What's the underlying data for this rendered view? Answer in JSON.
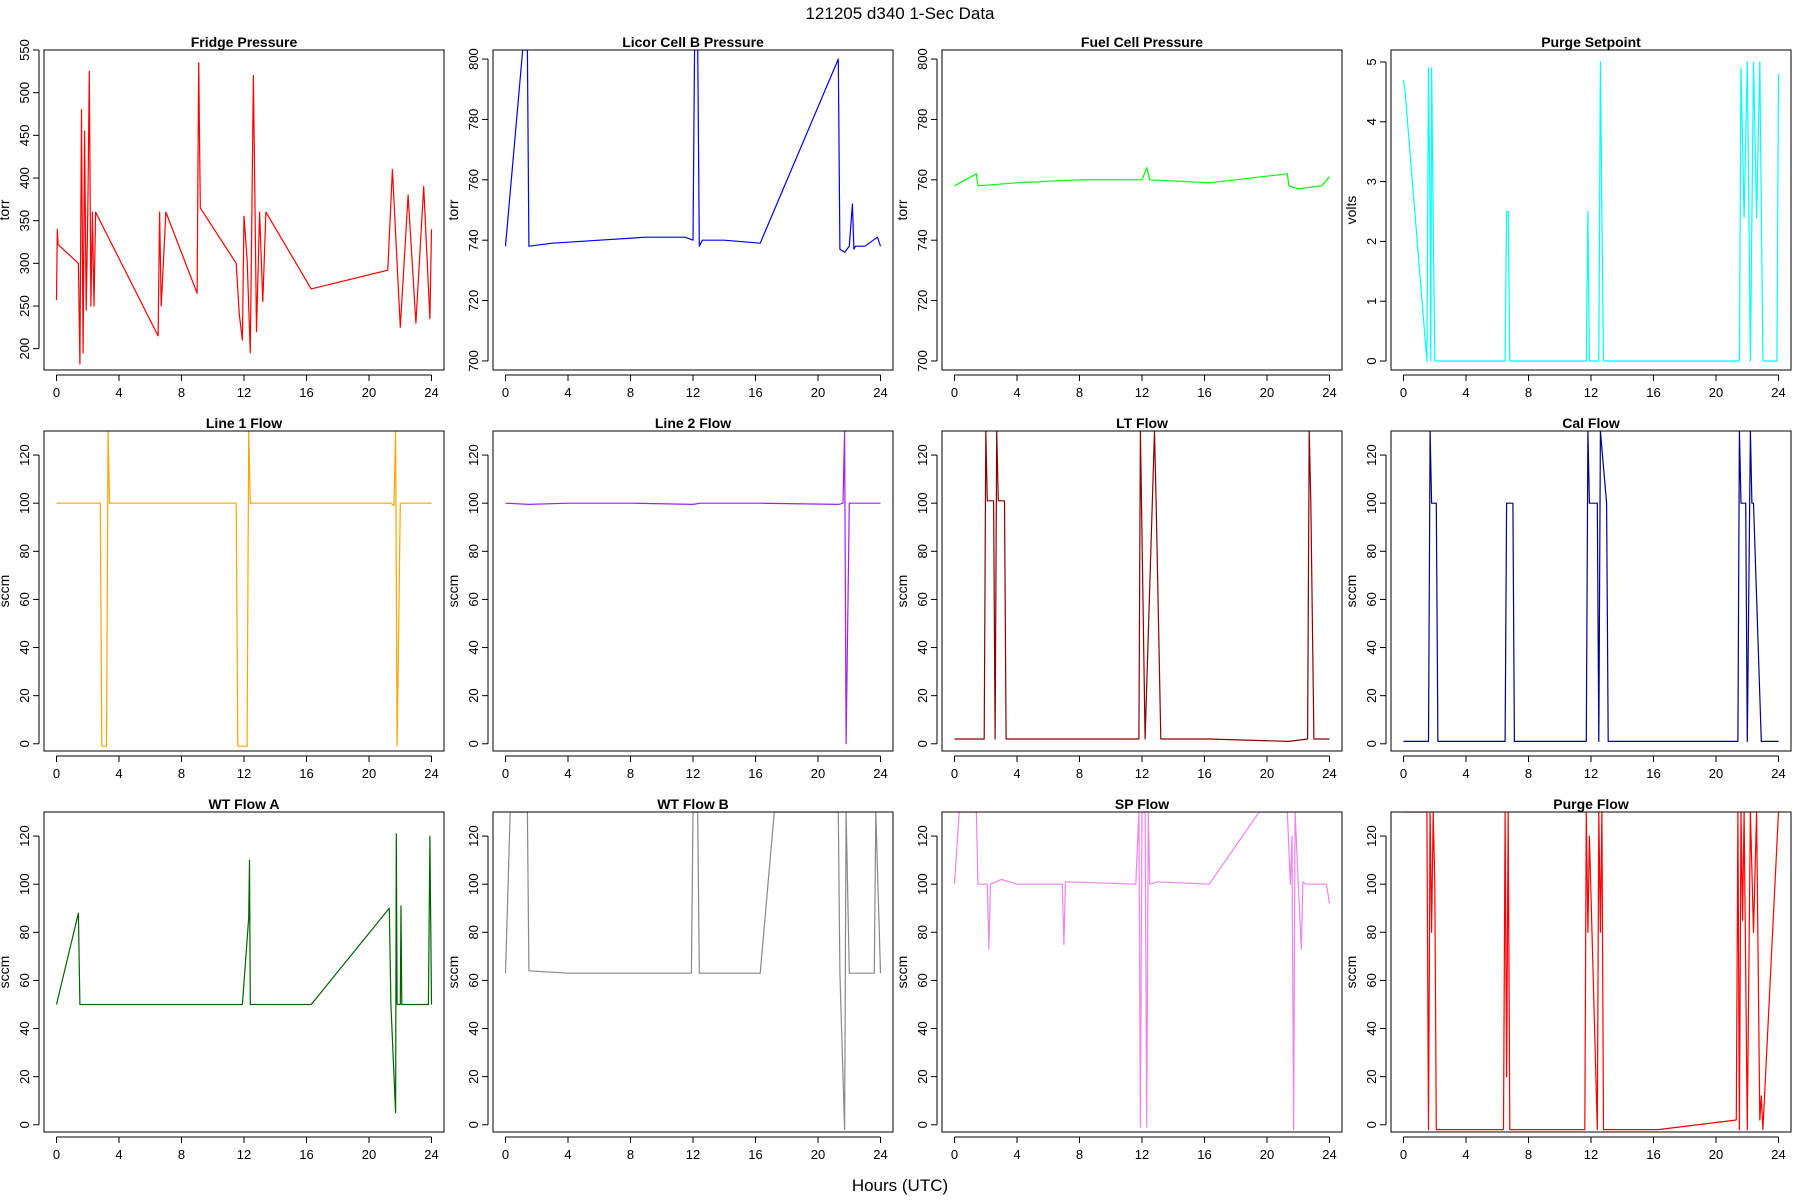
{
  "figure": {
    "title": "121205    d340    1-Sec Data",
    "xlabel": "Hours (UTC)",
    "xticks": [
      0,
      4,
      8,
      12,
      16,
      20,
      24
    ]
  },
  "chart_data": [
    {
      "type": "line",
      "title": "Fridge Pressure",
      "ylabel": "torr",
      "color": "#ff0000",
      "xlim": [
        0,
        24
      ],
      "ylim": [
        175,
        550
      ],
      "yticks": [
        200,
        250,
        300,
        350,
        400,
        450,
        500,
        550
      ],
      "x": [
        0.0,
        0.05,
        0.1,
        1.4,
        1.5,
        1.6,
        1.7,
        1.8,
        1.9,
        2.0,
        2.1,
        2.2,
        2.3,
        2.4,
        2.5,
        6.5,
        6.6,
        6.7,
        7.0,
        9.0,
        9.1,
        9.2,
        11.5,
        11.7,
        11.9,
        12.0,
        12.2,
        12.4,
        12.6,
        12.8,
        13.0,
        13.2,
        13.4,
        16.3,
        21.2,
        21.5,
        22.0,
        22.5,
        23.0,
        23.5,
        23.9,
        24.0
      ],
      "y": [
        257,
        340,
        322,
        300,
        182,
        480,
        195,
        455,
        245,
        360,
        525,
        250,
        360,
        250,
        360,
        215,
        360,
        250,
        360,
        265,
        535,
        365,
        300,
        240,
        210,
        355,
        305,
        195,
        520,
        220,
        360,
        255,
        360,
        270,
        292,
        410,
        225,
        380,
        230,
        390,
        235,
        340
      ]
    },
    {
      "type": "line",
      "title": "Licor Cell B Pressure",
      "ylabel": "torr",
      "color": "#0000ff",
      "xlim": [
        0,
        24
      ],
      "ylim": [
        697,
        803
      ],
      "yticks": [
        700,
        720,
        740,
        760,
        780,
        800
      ],
      "x": [
        0.0,
        1.1,
        1.4,
        1.5,
        3.0,
        6.0,
        9.0,
        11.5,
        12.0,
        12.1,
        12.3,
        12.4,
        12.6,
        14.0,
        16.3,
        21.3,
        21.4,
        21.7,
        22.0,
        22.2,
        22.3,
        22.4,
        23.0,
        23.8,
        24.0
      ],
      "y": [
        738,
        803,
        803,
        738,
        739,
        740,
        741,
        741,
        740,
        805,
        805,
        738,
        740,
        740,
        739,
        800,
        737,
        736,
        738,
        752,
        737,
        738,
        738,
        741,
        738
      ]
    },
    {
      "type": "line",
      "title": "Fuel Cell Pressure",
      "ylabel": "torr",
      "color": "#00ff00",
      "xlim": [
        0,
        24
      ],
      "ylim": [
        697,
        803
      ],
      "yticks": [
        700,
        720,
        740,
        760,
        780,
        800
      ],
      "x": [
        0.0,
        1.4,
        1.5,
        4.0,
        8.0,
        12.0,
        12.3,
        12.5,
        16.3,
        21.3,
        21.4,
        22.0,
        23.5,
        24.0
      ],
      "y": [
        758,
        762,
        758,
        759,
        760,
        760,
        764,
        760,
        759,
        762,
        758,
        757,
        758,
        761
      ]
    },
    {
      "type": "line",
      "title": "Purge Setpoint",
      "ylabel": "volts",
      "color": "#00ffff",
      "xlim": [
        0,
        24
      ],
      "ylim": [
        -0.15,
        5.2
      ],
      "yticks": [
        0,
        1,
        2,
        3,
        4,
        5
      ],
      "x": [
        0.0,
        0.1,
        1.5,
        1.6,
        1.7,
        1.75,
        1.8,
        1.9,
        2.0,
        6.5,
        6.6,
        6.7,
        6.8,
        11.7,
        11.8,
        11.9,
        12.5,
        12.6,
        12.7,
        12.8,
        21.5,
        21.6,
        21.8,
        22.0,
        22.2,
        22.4,
        22.6,
        22.8,
        23.0,
        23.9,
        24.0
      ],
      "y": [
        4.7,
        4.5,
        0,
        4.9,
        2.4,
        0,
        4.9,
        2.4,
        0,
        0,
        2.5,
        2.5,
        0,
        0,
        2.5,
        0,
        0,
        5.0,
        2.4,
        0,
        0,
        4.9,
        2.4,
        5.0,
        0,
        5.0,
        2.4,
        5.0,
        0,
        0,
        4.8
      ]
    },
    {
      "type": "line",
      "title": "Line 1 Flow",
      "ylabel": "sccm",
      "color": "#ffa500",
      "xlim": [
        0,
        24
      ],
      "ylim": [
        -3,
        130
      ],
      "yticks": [
        0,
        20,
        40,
        60,
        80,
        100,
        120
      ],
      "x": [
        0.0,
        2.8,
        2.9,
        3.2,
        3.3,
        3.4,
        11.5,
        11.6,
        12.2,
        12.3,
        12.4,
        16.3,
        21.4,
        21.6,
        21.7,
        21.8,
        22.0,
        24.0
      ],
      "y": [
        100,
        100,
        -1,
        -1,
        130,
        100,
        100,
        -1,
        -1,
        130,
        100,
        100,
        100,
        99,
        130,
        -1,
        100,
        100
      ]
    },
    {
      "type": "line",
      "title": "Line 2 Flow",
      "ylabel": "sccm",
      "color": "#a020f0",
      "xlim": [
        0,
        24
      ],
      "ylim": [
        -3,
        130
      ],
      "yticks": [
        0,
        20,
        40,
        60,
        80,
        100,
        120
      ],
      "x": [
        0.0,
        1.5,
        4.0,
        8.0,
        12.0,
        12.5,
        16.3,
        21.3,
        21.6,
        21.7,
        21.8,
        22.0,
        24.0
      ],
      "y": [
        100,
        99.5,
        100,
        100,
        99.5,
        100,
        100,
        99.5,
        100,
        130,
        0,
        100,
        100
      ]
    },
    {
      "type": "line",
      "title": "LT Flow",
      "ylabel": "sccm",
      "color": "#8b0000",
      "xlim": [
        0,
        24
      ],
      "ylim": [
        -3,
        130
      ],
      "yticks": [
        0,
        20,
        40,
        60,
        80,
        100,
        120
      ],
      "x": [
        0.0,
        1.5,
        1.9,
        2.0,
        2.1,
        2.5,
        2.6,
        2.7,
        2.8,
        3.2,
        3.3,
        11.8,
        11.9,
        12.2,
        12.8,
        12.9,
        13.2,
        16.3,
        21.4,
        22.6,
        22.7,
        22.8,
        23.0,
        24.0
      ],
      "y": [
        2,
        2,
        2,
        130,
        101,
        101,
        2,
        130,
        101,
        101,
        2,
        2,
        130,
        2,
        130,
        101,
        2,
        2,
        1,
        2,
        130,
        101,
        2,
        2
      ]
    },
    {
      "type": "line",
      "title": "Cal Flow",
      "ylabel": "sccm",
      "color": "#00008b",
      "xlim": [
        0,
        24
      ],
      "ylim": [
        -3,
        130
      ],
      "yticks": [
        0,
        20,
        40,
        60,
        80,
        100,
        120
      ],
      "x": [
        0.0,
        1.6,
        1.7,
        1.8,
        2.1,
        2.2,
        6.5,
        6.6,
        7.0,
        7.1,
        11.7,
        11.8,
        11.9,
        12.4,
        12.5,
        12.6,
        13.0,
        13.1,
        16.3,
        21.4,
        21.5,
        21.6,
        21.9,
        22.0,
        22.2,
        22.3,
        22.4,
        22.9,
        23.0,
        24.0
      ],
      "y": [
        1,
        1,
        130,
        100,
        100,
        1,
        1,
        100,
        100,
        1,
        1,
        130,
        100,
        100,
        1,
        130,
        100,
        1,
        1,
        1,
        130,
        100,
        100,
        1,
        130,
        100,
        100,
        1,
        1,
        1
      ]
    },
    {
      "type": "line",
      "title": "WT Flow A",
      "ylabel": "sccm",
      "color": "#006400",
      "xlim": [
        0,
        24
      ],
      "ylim": [
        -3,
        130
      ],
      "yticks": [
        0,
        20,
        40,
        60,
        80,
        100,
        120
      ],
      "x": [
        0.0,
        1.4,
        1.5,
        4.0,
        8.0,
        11.9,
        12.3,
        12.35,
        12.4,
        16.3,
        21.3,
        21.4,
        21.7,
        21.75,
        21.8,
        22.0,
        22.05,
        22.1,
        23.8,
        23.9,
        24.0
      ],
      "y": [
        50,
        88,
        50,
        50,
        50,
        50,
        86,
        110,
        50,
        50,
        90,
        50,
        5,
        121,
        50,
        50,
        91,
        50,
        50,
        120,
        50
      ]
    },
    {
      "type": "line",
      "title": "WT Flow B",
      "ylabel": "sccm",
      "color": "#888888",
      "xlim": [
        0,
        24
      ],
      "ylim": [
        -3,
        130
      ],
      "yticks": [
        0,
        20,
        40,
        60,
        80,
        100,
        120
      ],
      "x": [
        0.0,
        0.3,
        1.4,
        1.5,
        4.0,
        8.0,
        11.9,
        12.0,
        12.3,
        12.4,
        16.3,
        17.2,
        21.3,
        21.4,
        21.7,
        21.8,
        22.0,
        23.6,
        23.7,
        24.0
      ],
      "y": [
        63,
        130,
        130,
        64,
        63,
        63,
        63,
        130,
        130,
        63,
        63,
        130,
        130,
        63,
        -2,
        130,
        63,
        63,
        130,
        63
      ]
    },
    {
      "type": "line",
      "title": "SP Flow",
      "ylabel": "sccm",
      "color": "#ee82ee",
      "xlim": [
        0,
        24
      ],
      "ylim": [
        -3,
        130
      ],
      "yticks": [
        0,
        20,
        40,
        60,
        80,
        100,
        120
      ],
      "x": [
        0.0,
        0.3,
        1.4,
        1.5,
        2.1,
        2.2,
        2.3,
        3.0,
        4.0,
        6.9,
        7.0,
        7.1,
        11.6,
        11.8,
        11.9,
        12.0,
        12.2,
        12.3,
        12.4,
        12.5,
        13.0,
        16.3,
        19.5,
        21.3,
        21.5,
        21.6,
        21.7,
        21.8,
        22.0,
        22.2,
        22.3,
        22.5,
        23.8,
        24.0
      ],
      "y": [
        100,
        130,
        130,
        100,
        100,
        73,
        100,
        102,
        100,
        100,
        75,
        101,
        100,
        130,
        -1,
        130,
        130,
        -1,
        130,
        100,
        101,
        100,
        130,
        130,
        100,
        120,
        -2,
        130,
        100,
        73,
        101,
        100,
        100,
        92
      ]
    },
    {
      "type": "line",
      "title": "Purge Flow",
      "ylabel": "sccm",
      "color": "#ff0000",
      "xlim": [
        0,
        24
      ],
      "ylim": [
        -3,
        130
      ],
      "yticks": [
        0,
        20,
        40,
        60,
        80,
        100,
        120
      ],
      "x": [
        0.0,
        1.5,
        1.6,
        1.7,
        1.8,
        1.9,
        2.0,
        2.1,
        6.4,
        6.5,
        6.6,
        6.7,
        6.8,
        11.6,
        11.7,
        11.8,
        11.9,
        12.4,
        12.5,
        12.6,
        12.7,
        12.8,
        16.3,
        21.3,
        21.4,
        21.5,
        21.6,
        21.7,
        21.8,
        22.0,
        22.2,
        22.4,
        22.6,
        22.8,
        22.9,
        23.0,
        24.0
      ],
      "y": [
        130,
        130,
        -2,
        130,
        80,
        130,
        100,
        -2,
        -2,
        130,
        20,
        130,
        -2,
        -2,
        130,
        80,
        120,
        -2,
        130,
        80,
        130,
        -2,
        -2,
        2,
        130,
        -2,
        130,
        85,
        130,
        -2,
        130,
        80,
        130,
        2,
        12,
        -2,
        130
      ]
    }
  ]
}
